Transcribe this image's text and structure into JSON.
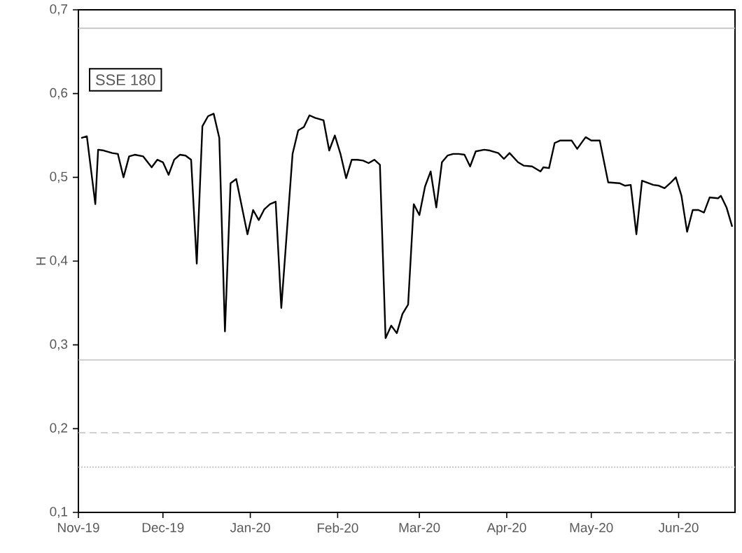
{
  "chart_data": {
    "type": "line",
    "ylabel": "H",
    "annotations": [
      "SSE 180"
    ],
    "color": "#000000",
    "marker": "none",
    "line_style": "solid",
    "x": [
      "2019-11-02",
      "2019-11-04",
      "2019-11-07",
      "2019-11-08",
      "2019-11-10",
      "2019-11-13",
      "2019-11-15",
      "2019-11-17",
      "2019-11-19",
      "2019-11-21",
      "2019-11-24",
      "2019-11-27",
      "2019-11-29",
      "2019-12-01",
      "2019-12-03",
      "2019-12-05",
      "2019-12-07",
      "2019-12-09",
      "2019-12-11",
      "2019-12-13",
      "2019-12-15",
      "2019-12-17",
      "2019-12-19",
      "2019-12-21",
      "2019-12-23",
      "2019-12-25",
      "2019-12-27",
      "2019-12-31",
      "2020-01-02",
      "2020-01-04",
      "2020-01-06",
      "2020-01-08",
      "2020-01-10",
      "2020-01-12",
      "2020-01-16",
      "2020-01-18",
      "2020-01-20",
      "2020-01-22",
      "2020-01-24",
      "2020-01-27",
      "2020-01-29",
      "2020-01-31",
      "2020-02-02",
      "2020-02-04",
      "2020-02-06",
      "2020-02-08",
      "2020-02-10",
      "2020-02-12",
      "2020-02-14",
      "2020-02-16",
      "2020-02-18",
      "2020-02-20",
      "2020-02-22",
      "2020-02-24",
      "2020-02-26",
      "2020-02-28",
      "2020-03-01",
      "2020-03-03",
      "2020-03-05",
      "2020-03-07",
      "2020-03-09",
      "2020-03-11",
      "2020-03-13",
      "2020-03-15",
      "2020-03-17",
      "2020-03-19",
      "2020-03-21",
      "2020-03-24",
      "2020-03-26",
      "2020-03-29",
      "2020-03-31",
      "2020-04-02",
      "2020-04-05",
      "2020-04-07",
      "2020-04-10",
      "2020-04-13",
      "2020-04-14",
      "2020-04-16",
      "2020-04-18",
      "2020-04-20",
      "2020-04-24",
      "2020-04-26",
      "2020-04-29",
      "2020-05-01",
      "2020-05-04",
      "2020-05-07",
      "2020-05-11",
      "2020-05-13",
      "2020-05-15",
      "2020-05-17",
      "2020-05-19",
      "2020-05-23",
      "2020-05-25",
      "2020-05-27",
      "2020-05-29",
      "2020-05-31",
      "2020-06-02",
      "2020-06-04",
      "2020-06-06",
      "2020-06-08",
      "2020-06-10",
      "2020-06-12",
      "2020-06-15",
      "2020-06-16",
      "2020-06-18",
      "2020-06-20"
    ],
    "values": [
      0.547,
      0.549,
      0.468,
      0.533,
      0.532,
      0.529,
      0.528,
      0.5,
      0.525,
      0.527,
      0.525,
      0.512,
      0.521,
      0.518,
      0.503,
      0.521,
      0.527,
      0.526,
      0.521,
      0.397,
      0.561,
      0.573,
      0.576,
      0.547,
      0.316,
      0.493,
      0.498,
      0.432,
      0.461,
      0.449,
      0.462,
      0.468,
      0.471,
      0.344,
      0.528,
      0.556,
      0.56,
      0.574,
      0.571,
      0.568,
      0.532,
      0.55,
      0.528,
      0.499,
      0.521,
      0.521,
      0.52,
      0.517,
      0.521,
      0.515,
      0.308,
      0.323,
      0.314,
      0.337,
      0.348,
      0.468,
      0.455,
      0.489,
      0.507,
      0.464,
      0.518,
      0.526,
      0.528,
      0.528,
      0.527,
      0.513,
      0.531,
      0.533,
      0.532,
      0.529,
      0.522,
      0.529,
      0.518,
      0.514,
      0.513,
      0.507,
      0.512,
      0.511,
      0.541,
      0.544,
      0.544,
      0.534,
      0.548,
      0.544,
      0.544,
      0.494,
      0.493,
      0.49,
      0.491,
      0.432,
      0.496,
      0.491,
      0.49,
      0.487,
      0.493,
      0.5,
      0.478,
      0.435,
      0.461,
      0.461,
      0.458,
      0.476,
      0.475,
      0.478,
      0.464,
      0.441
    ],
    "xlim": [
      "2019-11-01",
      "2020-06-21"
    ],
    "ylim": [
      0.1,
      0.7
    ],
    "xticks": [
      {
        "value": "2019-11-01",
        "label": "Nov-19"
      },
      {
        "value": "2019-12-01",
        "label": "Dec-19"
      },
      {
        "value": "2020-01-01",
        "label": "Jan-20"
      },
      {
        "value": "2020-02-01",
        "label": "Feb-20"
      },
      {
        "value": "2020-03-01",
        "label": "Mar-20"
      },
      {
        "value": "2020-04-01",
        "label": "Apr-20"
      },
      {
        "value": "2020-05-01",
        "label": "May-20"
      },
      {
        "value": "2020-06-01",
        "label": "Jun-20"
      }
    ],
    "yticks": [
      {
        "value": 0.1,
        "label": "0,1"
      },
      {
        "value": 0.2,
        "label": "0,2"
      },
      {
        "value": 0.3,
        "label": "0,3"
      },
      {
        "value": 0.4,
        "label": "0,4"
      },
      {
        "value": 0.5,
        "label": "0,5"
      },
      {
        "value": 0.6,
        "label": "0,6"
      },
      {
        "value": 0.7,
        "label": "0,7"
      }
    ],
    "ref_lines": [
      {
        "axis": "y",
        "value": 0.678,
        "color": "#bfbfbf",
        "line_style": "solid"
      },
      {
        "axis": "y",
        "value": 0.282,
        "color": "#bfbfbf",
        "line_style": "solid"
      },
      {
        "axis": "y",
        "value": 0.195,
        "color": "#bfbfbf",
        "line_style": "dashed"
      },
      {
        "axis": "y",
        "value": 0.154,
        "color": "#bfbfbf",
        "line_style": "dotted"
      }
    ]
  }
}
